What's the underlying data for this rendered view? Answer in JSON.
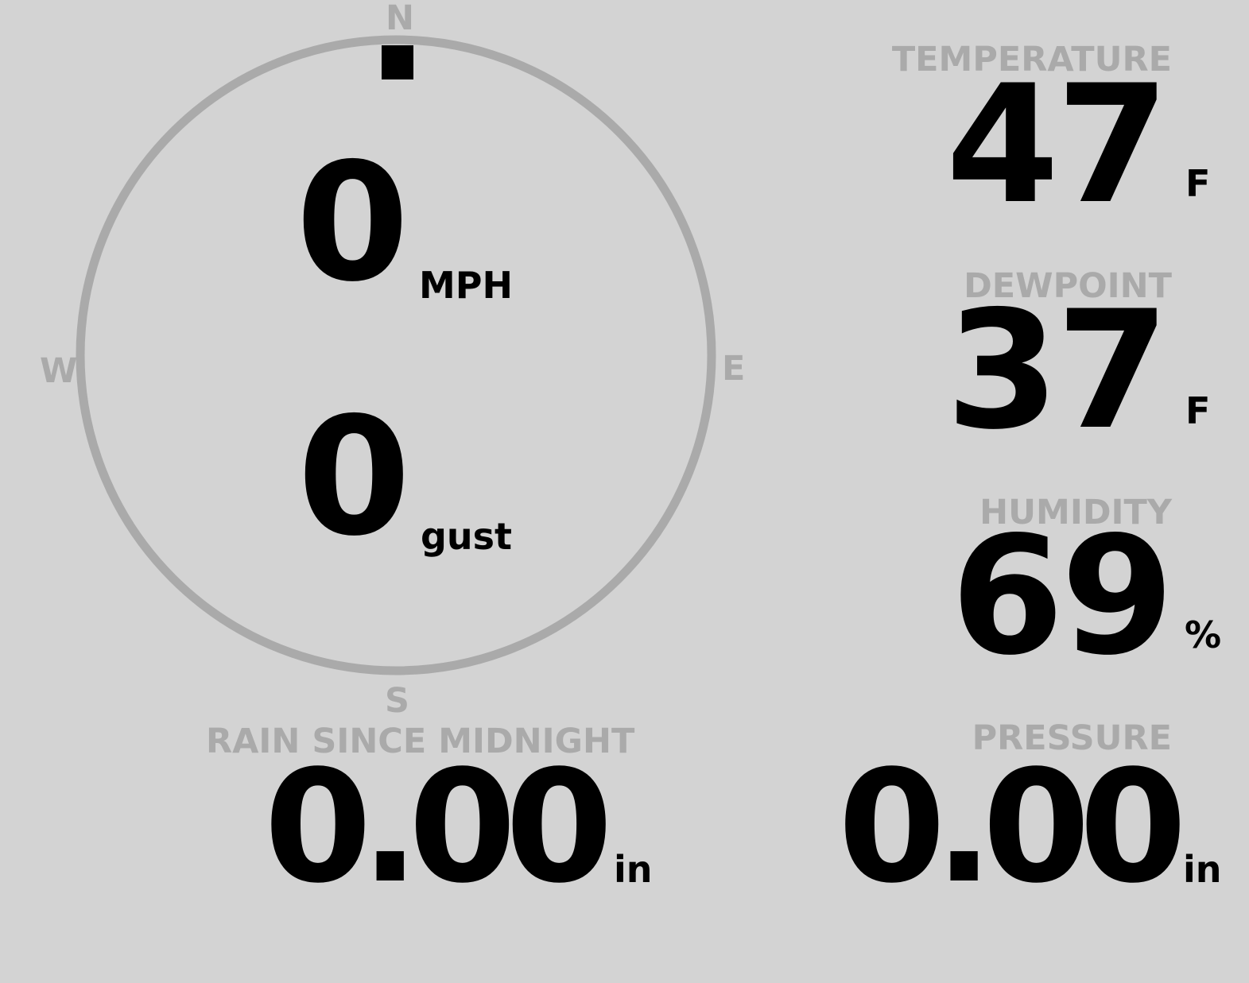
{
  "compass": {
    "north": "N",
    "south": "S",
    "east": "E",
    "west": "W",
    "direction_deg": 0,
    "ring_color": "#aaaaaa",
    "pointer_color": "#000000"
  },
  "wind": {
    "speed": "0",
    "speed_unit": "MPH",
    "gust": "0",
    "gust_unit": "gust"
  },
  "temperature": {
    "label": "TEMPERATURE",
    "value": "47",
    "unit": "F"
  },
  "dewpoint": {
    "label": "DEWPOINT",
    "value": "37",
    "unit": "F"
  },
  "humidity": {
    "label": "HUMIDITY",
    "value": "69",
    "unit": "%"
  },
  "rain": {
    "label": "RAIN SINCE MIDNIGHT",
    "value": "0.00",
    "unit": "in"
  },
  "pressure": {
    "label": "PRESSURE",
    "value": "0.00",
    "unit": "in"
  },
  "colors": {
    "background": "#d3d3d3",
    "label": "#aaaaaa",
    "value": "#000000"
  }
}
